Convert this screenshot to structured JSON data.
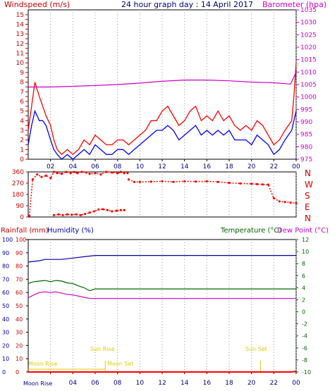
{
  "header": {
    "left_label": "Windspeed (m/s)",
    "title": "24 hour graph day : 14 April 2017",
    "right_label": "Barometer (hpa)"
  },
  "colors": {
    "wind_max": "#ff0000",
    "wind_avg": "#0000ff",
    "barometer": "#cc00cc",
    "temperature": "#006600",
    "dewpoint": "#cc00cc",
    "humidity": "#0000aa",
    "rain": "#ff0000",
    "axis_red": "#cc0000",
    "axis_blue": "#0000aa",
    "axis_green": "#006600",
    "astro": "#ddcc00"
  },
  "lower_header": {
    "rain_label": "Rainfall (mm)",
    "humidity_label": "Humidity (%)",
    "temperature_label": "Temperature (°C)",
    "dewpoint_label": "Dew Point (°C)"
  },
  "x_ticks": [
    "02",
    "04",
    "06",
    "08",
    "10",
    "12",
    "14",
    "16",
    "18",
    "20",
    "22",
    "00"
  ],
  "direction_letters": [
    "N",
    "W",
    "S",
    "E",
    "N"
  ],
  "astro": {
    "moon_rise_bottom": "Moon Rise",
    "moon_rise_top": "Moon Rise",
    "sun_rise": "Sun Rise",
    "moon_set": "Moon Set",
    "sun_set": "Sun Set"
  },
  "chart_data": [
    {
      "type": "line",
      "x_range_hours": [
        0,
        24
      ],
      "left_axis": {
        "ylim": [
          0,
          15.5
        ],
        "ticks": [
          0,
          0.5,
          1,
          1.5,
          2,
          2.5,
          3,
          3.5,
          4,
          4.5,
          5,
          5.5,
          6,
          6.5,
          7,
          7.5,
          8,
          8.5,
          9,
          9.5,
          10,
          10.5,
          11,
          11.5,
          12,
          12.5,
          13,
          13.5,
          14,
          14.5,
          15
        ]
      },
      "right_axis": {
        "ylim": [
          975,
          1035
        ],
        "ticks": [
          975,
          980,
          985,
          990,
          995,
          1000,
          1005,
          1010,
          1015,
          1020,
          1025,
          1030,
          1035
        ]
      },
      "series": [
        {
          "name": "Windspeed",
          "axis": "left",
          "x": [
            0,
            0.3,
            0.6,
            1,
            1.3,
            1.6,
            2,
            2.3,
            2.6,
            3,
            3.5,
            4,
            4.5,
            5,
            5.5,
            6,
            6.5,
            7,
            7.5,
            8,
            8.5,
            9,
            9.5,
            10,
            10.5,
            11,
            11.5,
            12,
            12.5,
            13,
            13.5,
            14,
            14.5,
            15,
            15.5,
            16,
            16.5,
            17,
            17.5,
            18,
            18.5,
            19,
            19.5,
            20,
            20.5,
            21,
            21.5,
            22,
            22.5,
            23,
            23.3,
            23.6,
            23.8,
            24
          ],
          "y": [
            3,
            5.5,
            8,
            6.5,
            5.5,
            4.5,
            3.5,
            2,
            1,
            0.5,
            1,
            0.5,
            1,
            2,
            1.5,
            2.5,
            2,
            1.5,
            1.5,
            2,
            2,
            1.5,
            2,
            2.5,
            3,
            4,
            4,
            5,
            5.5,
            4.5,
            3.5,
            4,
            5,
            5.5,
            4,
            4.5,
            4,
            5,
            4,
            4.5,
            3.5,
            3,
            3.5,
            3,
            4,
            3.5,
            2.5,
            1.5,
            2,
            3,
            3.5,
            4,
            6.5,
            10
          ]
        },
        {
          "name": "Gust average",
          "axis": "left",
          "x": [
            0,
            0.3,
            0.6,
            1,
            1.3,
            1.6,
            2,
            2.3,
            2.6,
            3,
            3.5,
            4,
            4.5,
            5,
            5.5,
            6,
            6.5,
            7,
            7.5,
            8,
            8.5,
            9,
            9.5,
            10,
            10.5,
            11,
            11.5,
            12,
            12.5,
            13,
            13.5,
            14,
            14.5,
            15,
            15.5,
            16,
            16.5,
            17,
            17.5,
            18,
            18.5,
            19,
            19.5,
            20,
            20.5,
            21,
            21.5,
            22,
            22.5,
            23,
            23.3,
            23.6,
            23.8,
            24
          ],
          "y": [
            1.5,
            3.5,
            5,
            4,
            4,
            3.5,
            2,
            1,
            0.5,
            0,
            0.5,
            0,
            0.5,
            1,
            0.5,
            1.5,
            1,
            0.5,
            0.5,
            1,
            1,
            0.5,
            1,
            1.5,
            2,
            2.5,
            3,
            3,
            3.5,
            3,
            2,
            2.5,
            3,
            3.5,
            2.5,
            3,
            2.5,
            3,
            2.5,
            3,
            2,
            2,
            2,
            1.5,
            2.5,
            2,
            1.5,
            0.5,
            1,
            2,
            2.5,
            3,
            4,
            5
          ]
        },
        {
          "name": "Barometer",
          "axis": "right",
          "x": [
            0,
            2,
            4,
            6,
            8,
            10,
            12,
            14,
            16,
            18,
            20,
            22,
            23.5,
            24
          ],
          "y": [
            1004,
            1004,
            1004.3,
            1004.6,
            1005,
            1005.6,
            1006.3,
            1006.8,
            1006.8,
            1006.5,
            1006,
            1005.7,
            1005.2,
            1010
          ]
        }
      ]
    },
    {
      "type": "scatter",
      "x_range_hours": [
        0,
        24
      ],
      "ylim": [
        0,
        360
      ],
      "ticks": [
        0,
        45,
        90,
        135,
        180,
        225,
        270,
        315,
        360
      ],
      "series": [
        {
          "name": "Wind direction",
          "segments": [
            {
              "x": [
                0.1,
                0.4,
                0.8,
                1.2,
                1.6,
                2,
                2.3,
                2.6,
                3,
                3.4,
                3.8,
                4.1,
                4.4,
                4.8,
                5.2,
                5.5,
                6,
                6.5,
                7,
                7.5,
                8,
                8.3,
                8.6,
                8.9
              ],
              "y": [
                10,
                300,
                340,
                320,
                330,
                310,
                360,
                350,
                345,
                360,
                350,
                360,
                350,
                360,
                355,
                345,
                350,
                340,
                360,
                355,
                350,
                360,
                350,
                350
              ]
            },
            {
              "x": [
                2.3,
                2.7,
                3.1,
                3.5,
                3.9,
                4.3,
                4.7,
                5.1,
                5.5,
                5.9,
                6.3,
                6.7,
                7.1,
                7.5,
                7.9,
                8.3,
                8.6
              ],
              "y": [
                15,
                20,
                15,
                20,
                18,
                20,
                15,
                25,
                35,
                45,
                60,
                62,
                55,
                45,
                50,
                55,
                55
              ]
            },
            {
              "x": [
                9,
                9.5,
                10,
                11,
                12,
                13,
                14,
                15,
                16,
                17,
                18,
                19,
                20,
                20.5,
                21,
                21.5,
                22,
                22.5,
                23,
                23.5,
                24
              ],
              "y": [
                300,
                280,
                280,
                282,
                285,
                280,
                285,
                283,
                285,
                280,
                272,
                268,
                265,
                262,
                260,
                258,
                150,
                125,
                120,
                115,
                110
              ]
            }
          ]
        }
      ]
    },
    {
      "type": "line",
      "x_range_hours": [
        0,
        24
      ],
      "left_axis": {
        "name": "Humidity / Rainfall",
        "ylim": [
          0,
          100
        ],
        "ticks": [
          0,
          10,
          20,
          30,
          40,
          50,
          60,
          70,
          80,
          90,
          100
        ]
      },
      "right_axis": {
        "ylim": [
          -10,
          12
        ],
        "ticks": [
          -10,
          -8,
          -6,
          -4,
          -2,
          0,
          2,
          4,
          6,
          8,
          10,
          12
        ]
      },
      "series": [
        {
          "name": "Humidity",
          "axis": "left",
          "x": [
            0,
            1,
            1.5,
            2,
            3,
            4,
            5,
            6,
            8,
            10,
            12,
            14,
            16,
            18,
            20,
            22,
            24
          ],
          "y": [
            83,
            84,
            85,
            85,
            85,
            86,
            87,
            88,
            88,
            88,
            88,
            88,
            88,
            88,
            88,
            88,
            88
          ]
        },
        {
          "name": "Temperature",
          "axis": "right",
          "x": [
            0,
            0.5,
            1,
            1.5,
            2,
            2.5,
            3,
            3.5,
            4,
            4.5,
            5,
            5.5,
            6,
            8,
            10,
            12,
            14,
            16,
            18,
            20,
            22,
            24
          ],
          "y": [
            4.7,
            5,
            5.1,
            5.2,
            5,
            5.2,
            5.1,
            4.8,
            4.7,
            4.3,
            4,
            3.5,
            3.8,
            3.8,
            3.8,
            3.8,
            3.8,
            3.8,
            3.8,
            3.8,
            3.8,
            3.8
          ]
        },
        {
          "name": "Dew Point",
          "axis": "right",
          "x": [
            0,
            0.5,
            1,
            1.5,
            2,
            2.5,
            3,
            3.5,
            4,
            4.5,
            5,
            5.5,
            6,
            8,
            10,
            12,
            14,
            16,
            18,
            20,
            22,
            24
          ],
          "y": [
            2.3,
            2.8,
            3.2,
            3.3,
            3.2,
            3.3,
            3.1,
            2.9,
            2.8,
            2.6,
            2.4,
            2.2,
            2.2,
            2.2,
            2.2,
            2.2,
            2.2,
            2.2,
            2.2,
            2.2,
            2.2,
            2.2
          ]
        },
        {
          "name": "Rainfall",
          "axis": "left",
          "x": [
            0,
            23.5,
            24
          ],
          "y": [
            0,
            0,
            0.5
          ]
        }
      ],
      "astro_markers_hours": {
        "sun_rise": 6.9,
        "sun_set": 20.8
      }
    }
  ]
}
